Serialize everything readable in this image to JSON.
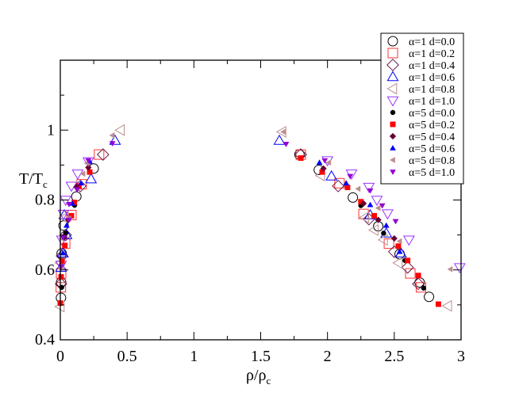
{
  "chart_data": {
    "type": "scatter",
    "title": "",
    "xlabel": "ρ/ρ",
    "xlabel_sub": "c",
    "ylabel": "T/T",
    "ylabel_sub": "c",
    "xlim": [
      0,
      3
    ],
    "ylim": [
      0.4,
      1.2
    ],
    "x_ticks": [
      0,
      0.5,
      1,
      1.5,
      2,
      2.5,
      3
    ],
    "x_tick_labels": [
      "0",
      "0.5",
      "1",
      "1.5",
      "2",
      "2.5",
      "3"
    ],
    "y_ticks": [
      0.4,
      0.6,
      0.8,
      1.0
    ],
    "y_tick_labels": [
      "0.4",
      "0.6",
      "0.8",
      "1"
    ],
    "grid": false,
    "legend_position": "top-right",
    "series": [
      {
        "name": "α=1 d=0.0",
        "marker": "circle",
        "filled": false,
        "color": "#000000",
        "points": [
          [
            0.25,
            0.89
          ],
          [
            0.12,
            0.81
          ],
          [
            0.024,
            0.727
          ],
          [
            0.01,
            0.647
          ],
          [
            0.006,
            0.565
          ],
          [
            0.005,
            0.52
          ],
          [
            1.79,
            0.93
          ],
          [
            1.935,
            0.886
          ],
          [
            2.19,
            0.807
          ],
          [
            2.38,
            0.725
          ],
          [
            2.54,
            0.645
          ],
          [
            2.69,
            0.564
          ],
          [
            2.76,
            0.523
          ]
        ]
      },
      {
        "name": "α=1 d=0.2",
        "marker": "square",
        "filled": false,
        "color": "#ff3333",
        "points": [
          [
            0.29,
            0.93
          ],
          [
            0.16,
            0.845
          ],
          [
            0.083,
            0.757
          ],
          [
            0.036,
            0.675
          ],
          [
            0.006,
            0.59
          ],
          [
            0.004,
            0.55
          ],
          [
            1.8,
            0.93
          ],
          [
            2.09,
            0.848
          ],
          [
            2.27,
            0.76
          ],
          [
            2.46,
            0.675
          ],
          [
            2.62,
            0.59
          ],
          [
            2.7,
            0.55
          ]
        ]
      },
      {
        "name": "α=1 d=0.4",
        "marker": "diamond",
        "filled": false,
        "color": "#6b1a4a",
        "points": [
          [
            0.32,
            0.93
          ],
          [
            0.15,
            0.84
          ],
          [
            0.04,
            0.7
          ],
          [
            0.012,
            0.64
          ],
          [
            0.005,
            0.56
          ],
          [
            1.8,
            0.93
          ],
          [
            2.08,
            0.84
          ],
          [
            2.31,
            0.745
          ],
          [
            2.5,
            0.652
          ],
          [
            2.6,
            0.607
          ],
          [
            2.68,
            0.56
          ]
        ]
      },
      {
        "name": "α=1 d=0.6",
        "marker": "triangle-up",
        "filled": false,
        "color": "#0000ff",
        "points": [
          [
            0.41,
            0.97
          ],
          [
            0.23,
            0.86
          ],
          [
            0.03,
            0.757
          ],
          [
            0.047,
            0.7
          ],
          [
            0.02,
            0.648
          ],
          [
            0.006,
            0.607
          ],
          [
            1.64,
            0.97
          ],
          [
            2.03,
            0.868
          ],
          [
            2.32,
            0.757
          ],
          [
            2.44,
            0.705
          ],
          [
            2.55,
            0.648
          ]
        ]
      },
      {
        "name": "α=1 d=0.8",
        "marker": "triangle-left",
        "filled": false,
        "color": "#bc8f8f",
        "points": [
          [
            0.45,
            1.0
          ],
          [
            0.03,
            0.75
          ],
          [
            0.0,
            0.62
          ],
          [
            0.0,
            0.495
          ],
          [
            1.66,
            0.995
          ],
          [
            1.95,
            0.87
          ],
          [
            2.28,
            0.75
          ],
          [
            2.35,
            0.714
          ],
          [
            2.42,
            0.686
          ],
          [
            2.53,
            0.62
          ],
          [
            2.9,
            0.497
          ]
        ]
      },
      {
        "name": "α=1 d=1.0",
        "marker": "triangle-down",
        "filled": false,
        "color": "#9933ff",
        "points": [
          [
            0.21,
            0.91
          ],
          [
            0.13,
            0.875
          ],
          [
            0.083,
            0.84
          ],
          [
            0.04,
            0.8
          ],
          [
            0.024,
            0.76
          ],
          [
            0.012,
            0.686
          ],
          [
            0.006,
            0.614
          ],
          [
            2.0,
            0.913
          ],
          [
            2.18,
            0.875
          ],
          [
            2.31,
            0.837
          ],
          [
            2.37,
            0.8
          ],
          [
            2.45,
            0.761
          ],
          [
            2.61,
            0.686
          ],
          [
            2.99,
            0.607
          ]
        ]
      },
      {
        "name": "α=5 d=0.0",
        "marker": "circle",
        "filled": true,
        "color": "#000000",
        "points": [
          [
            0.107,
            0.785
          ],
          [
            0.04,
            0.705
          ],
          [
            0.01,
            0.55
          ],
          [
            2.25,
            0.784
          ],
          [
            2.42,
            0.705
          ],
          [
            2.58,
            0.627
          ],
          [
            2.72,
            0.548
          ]
        ]
      },
      {
        "name": "α=5 d=0.2",
        "marker": "square",
        "filled": true,
        "color": "#ff0000",
        "points": [
          [
            0.22,
            0.88
          ],
          [
            0.14,
            0.84
          ],
          [
            0.105,
            0.793
          ],
          [
            0.083,
            0.755
          ],
          [
            0.034,
            0.67
          ],
          [
            0.013,
            0.625
          ],
          [
            0.006,
            0.58
          ],
          [
            0.0,
            0.505
          ],
          [
            1.8,
            0.92
          ],
          [
            1.96,
            0.88
          ],
          [
            2.15,
            0.836
          ],
          [
            2.25,
            0.795
          ],
          [
            2.35,
            0.755
          ],
          [
            2.53,
            0.668
          ],
          [
            2.6,
            0.627
          ],
          [
            2.68,
            0.584
          ],
          [
            2.83,
            0.502
          ]
        ]
      },
      {
        "name": "α=5 d=0.4",
        "marker": "diamond",
        "filled": true,
        "color": "#660033",
        "points": [
          [
            0.21,
            0.893
          ],
          [
            0.12,
            0.837
          ],
          [
            0.06,
            0.743
          ],
          [
            0.03,
            0.693
          ],
          [
            1.97,
            0.89
          ],
          [
            2.27,
            0.79
          ],
          [
            2.38,
            0.743
          ],
          [
            2.5,
            0.69
          ]
        ]
      },
      {
        "name": "α=5 d=0.6",
        "marker": "triangle-up",
        "filled": true,
        "color": "#0000ff",
        "points": [
          [
            0.22,
            0.91
          ],
          [
            0.155,
            0.848
          ],
          [
            0.09,
            0.79
          ],
          [
            0.047,
            0.727
          ],
          [
            0.02,
            0.648
          ],
          [
            1.94,
            0.907
          ],
          [
            2.14,
            0.848
          ],
          [
            2.32,
            0.786
          ],
          [
            2.44,
            0.727
          ],
          [
            2.54,
            0.652
          ]
        ]
      },
      {
        "name": "α=5 d=0.8",
        "marker": "triangle-left",
        "filled": true,
        "color": "#bc8f8f",
        "points": [
          [
            0.39,
            0.985
          ],
          [
            0.2,
            0.905
          ],
          [
            0.17,
            0.875
          ],
          [
            0.065,
            0.747
          ],
          [
            0.01,
            0.69
          ],
          [
            0.006,
            0.61
          ],
          [
            1.67,
            0.995
          ],
          [
            2.01,
            0.907
          ],
          [
            2.23,
            0.832
          ],
          [
            2.38,
            0.777
          ],
          [
            2.54,
            0.682
          ],
          [
            2.92,
            0.602
          ]
        ]
      },
      {
        "name": "α=5 d=1.0",
        "marker": "triangle-down",
        "filled": true,
        "color": "#9400d3",
        "points": [
          [
            0.39,
            0.962
          ],
          [
            0.21,
            0.913
          ],
          [
            0.125,
            0.83
          ],
          [
            0.065,
            0.788
          ],
          [
            0.065,
            0.743
          ],
          [
            0.02,
            0.693
          ],
          [
            0.006,
            0.61
          ],
          [
            1.69,
            0.96
          ],
          [
            1.98,
            0.913
          ],
          [
            2.17,
            0.868
          ],
          [
            2.32,
            0.827
          ],
          [
            2.41,
            0.784
          ],
          [
            2.51,
            0.739
          ]
        ]
      }
    ]
  }
}
